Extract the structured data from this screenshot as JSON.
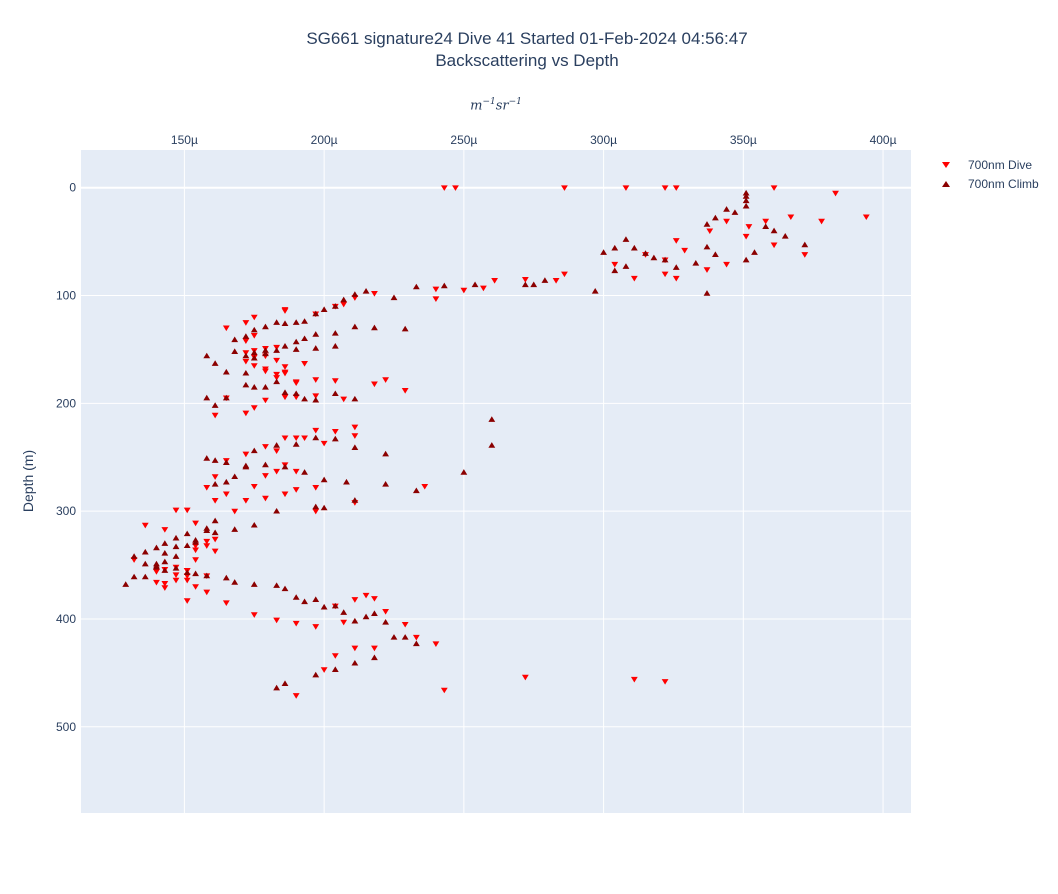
{
  "title": {
    "line1": "SG661 signature24 Dive 41 Started 01-Feb-2024 04:56:47",
    "line2": "Backscattering vs Depth"
  },
  "chart_data": {
    "type": "scatter",
    "title": "SG661 signature24 Dive 41 Started 01-Feb-2024 04:56:47 Backscattering vs Depth",
    "xlabel_unit": "m^-1 sr^-1",
    "ylabel": "Depth (m)",
    "x_axis_side": "top",
    "y_reversed": true,
    "xlim": [
      0.000113,
      0.00041
    ],
    "ylim": [
      -35,
      580
    ],
    "x_ticks": [
      0.00015,
      0.0002,
      0.00025,
      0.0003,
      0.00035,
      0.0004
    ],
    "x_tick_labels": [
      "150µ",
      "200µ",
      "250µ",
      "300µ",
      "350µ",
      "400µ"
    ],
    "y_ticks": [
      0,
      100,
      200,
      300,
      400,
      500
    ],
    "y_tick_labels": [
      "0",
      "100",
      "200",
      "300",
      "400",
      "500"
    ],
    "grid": true,
    "legend_position": "top-right",
    "colors": {
      "dive": "#ff0000",
      "climb": "#8b0000",
      "plot_bg": "#e5ecf6",
      "grid": "#ffffff"
    },
    "series": [
      {
        "name": "700nm Dive",
        "marker": "triangle-down",
        "x": [
          0.000243,
          0.000247,
          0.000286,
          0.000308,
          0.000322,
          0.000326,
          0.000361,
          0.000383,
          0.000394,
          0.000378,
          0.000367,
          0.000358,
          0.000352,
          0.000344,
          0.000338,
          0.000372,
          0.000361,
          0.000351,
          0.000344,
          0.000337,
          0.000326,
          0.000329,
          0.000322,
          0.000315,
          0.000304,
          0.000322,
          0.000326,
          0.000311,
          0.000286,
          0.000283,
          0.000272,
          0.000261,
          0.000257,
          0.00025,
          0.00024,
          0.00024,
          0.000218,
          0.000211,
          0.000207,
          0.000204,
          0.000197,
          0.000186,
          0.000186,
          0.000175,
          0.000172,
          0.000165,
          0.000172,
          0.000175,
          0.000175,
          0.000179,
          0.000183,
          0.000186,
          0.00019,
          0.000193,
          0.000183,
          0.000179,
          0.000186,
          0.000183,
          0.000179,
          0.000175,
          0.000172,
          0.000165,
          0.000161,
          0.000172,
          0.000175,
          0.000179,
          0.000186,
          0.00019,
          0.000197,
          0.000207,
          0.000222,
          0.000229,
          0.000218,
          0.000204,
          0.000197,
          0.00019,
          0.000186,
          0.000183,
          0.000179,
          0.000175,
          0.000172,
          0.000179,
          0.000186,
          0.00019,
          0.000197,
          0.000204,
          0.000211,
          0.000211,
          0.0002,
          0.000193,
          0.000186,
          0.000183,
          0.000179,
          0.000172,
          0.000165,
          0.000161,
          0.000158,
          0.000165,
          0.000172,
          0.000179,
          0.000186,
          0.00019,
          0.000197,
          0.000211,
          0.000236,
          0.000197,
          0.00019,
          0.000183,
          0.000175,
          0.000168,
          0.000161,
          0.000154,
          0.000151,
          0.000147,
          0.000143,
          0.000136,
          0.000132,
          0.00014,
          0.000143,
          0.000147,
          0.000151,
          0.000154,
          0.000158,
          0.000161,
          0.000154,
          0.000151,
          0.000147,
          0.000143,
          0.00014,
          0.000143,
          0.000147,
          0.000151,
          0.000154,
          0.000158,
          0.000161,
          0.000158,
          0.000151,
          0.000154,
          0.000151,
          0.000158,
          0.000165,
          0.000175,
          0.000183,
          0.00019,
          0.000197,
          0.000204,
          0.000207,
          0.000211,
          0.000215,
          0.000218,
          0.000222,
          0.000229,
          0.000233,
          0.00024,
          0.000218,
          0.000211,
          0.000204,
          0.0002,
          0.000272,
          0.000311,
          0.000322,
          0.000243,
          0.00019
        ]
      },
      {
        "name": "700nm Climb",
        "marker": "triangle-up",
        "x": [
          0.000351,
          0.000351,
          0.000351,
          0.000347,
          0.000351,
          0.000344,
          0.00034,
          0.000337,
          0.000358,
          0.000361,
          0.000365,
          0.000372,
          0.000354,
          0.000351,
          0.00034,
          0.000337,
          0.000333,
          0.000326,
          0.000322,
          0.000318,
          0.000315,
          0.000311,
          0.000308,
          0.000304,
          0.0003,
          0.000308,
          0.000304,
          0.000337,
          0.000297,
          0.000279,
          0.000275,
          0.000272,
          0.000254,
          0.000243,
          0.000233,
          0.000225,
          0.000215,
          0.000211,
          0.000207,
          0.000204,
          0.0002,
          0.000197,
          0.000193,
          0.00019,
          0.000186,
          0.000183,
          0.000179,
          0.000175,
          0.000172,
          0.000168,
          0.000158,
          0.000161,
          0.000165,
          0.000172,
          0.000175,
          0.000179,
          0.000186,
          0.00019,
          0.000193,
          0.000197,
          0.000204,
          0.000211,
          0.000229,
          0.000218,
          0.000204,
          0.000197,
          0.00019,
          0.000183,
          0.000179,
          0.000175,
          0.000172,
          0.000168,
          0.000158,
          0.000161,
          0.000165,
          0.000172,
          0.000175,
          0.000179,
          0.000183,
          0.000186,
          0.00019,
          0.000193,
          0.000197,
          0.000204,
          0.000211,
          0.00026,
          0.00026,
          0.00025,
          0.000222,
          0.000211,
          0.000204,
          0.000197,
          0.00019,
          0.000183,
          0.000175,
          0.000172,
          0.000168,
          0.000165,
          0.000161,
          0.000158,
          0.000161,
          0.000165,
          0.000172,
          0.000179,
          0.000186,
          0.000193,
          0.0002,
          0.000208,
          0.000222,
          0.000233,
          0.000211,
          0.0002,
          0.000197,
          0.000183,
          0.000175,
          0.000168,
          0.000161,
          0.000154,
          0.000147,
          0.000143,
          0.00014,
          0.000136,
          0.000129,
          0.000132,
          0.00014,
          0.000143,
          0.000147,
          0.000151,
          0.000154,
          0.000158,
          0.000161,
          0.000158,
          0.000151,
          0.000147,
          0.000143,
          0.00014,
          0.000136,
          0.000132,
          0.000136,
          0.00014,
          0.000143,
          0.000147,
          0.000151,
          0.000154,
          0.000158,
          0.000165,
          0.000168,
          0.000175,
          0.000183,
          0.000186,
          0.00019,
          0.000193,
          0.000197,
          0.0002,
          0.000204,
          0.000207,
          0.000211,
          0.000215,
          0.000218,
          0.000222,
          0.000225,
          0.000229,
          0.000233,
          0.000218,
          0.000211,
          0.000204,
          0.000197,
          0.000186,
          0.000183
        ]
      }
    ]
  },
  "legend": {
    "dive_label": "700nm Dive",
    "climb_label": "700nm Climb"
  }
}
